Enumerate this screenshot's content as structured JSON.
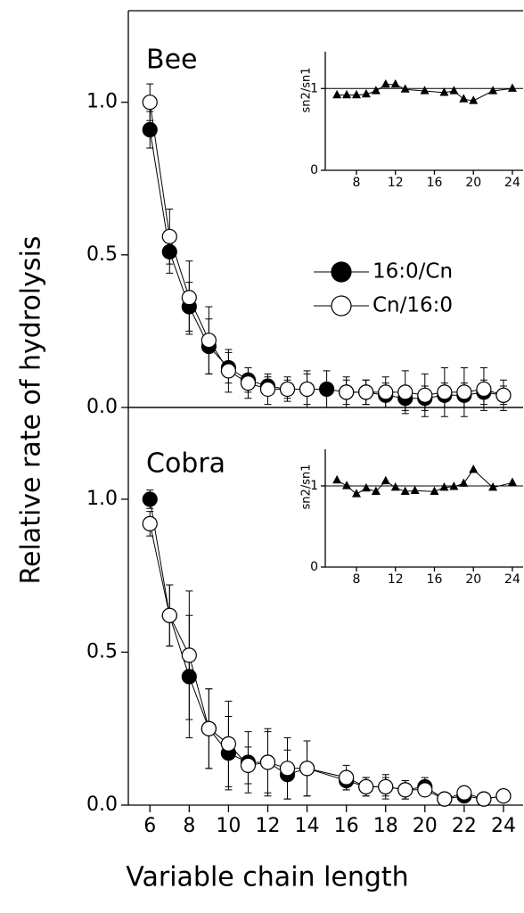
{
  "chart_data": [
    {
      "type": "line",
      "label": "Bee",
      "ylabel": "Relative rate of hydrolysis",
      "xlim": [
        4.9,
        25
      ],
      "ylim": [
        0,
        1.3
      ],
      "yticks": [
        {
          "value": 0,
          "label": "0.0"
        },
        0.5,
        {
          "value": 1,
          "label": "1.0"
        }
      ],
      "legend": "right",
      "x": [
        6,
        7,
        8,
        9,
        10,
        11,
        12,
        13,
        14,
        15,
        16,
        17,
        18,
        19,
        20,
        21,
        22,
        23,
        24
      ],
      "series": [
        {
          "name": "16:0/Cn",
          "color": "#000000",
          "values": [
            0.91,
            0.51,
            0.33,
            0.2,
            0.13,
            0.09,
            0.07,
            0.06,
            0.06,
            0.06,
            0.05,
            0.05,
            0.04,
            0.03,
            0.03,
            0.04,
            0.04,
            0.05,
            0.04
          ],
          "errors": [
            0.06,
            0.07,
            0.08,
            0.09,
            0.05,
            0.04,
            0.03,
            0.03,
            0.06,
            0.06,
            0.05,
            0.04,
            0.04,
            0.04,
            0.04,
            0.04,
            0.04,
            0.04,
            0.03
          ]
        },
        {
          "name": "Cn/16:0",
          "color": "#ffffff",
          "values": [
            1.0,
            0.56,
            0.36,
            0.22,
            0.12,
            0.08,
            0.06,
            0.06,
            0.06,
            null,
            0.05,
            0.05,
            0.05,
            0.05,
            0.04,
            0.05,
            0.05,
            0.06,
            0.04
          ],
          "errors": [
            0.06,
            0.09,
            0.12,
            0.11,
            0.07,
            0.05,
            0.05,
            0.04,
            0.05,
            null,
            0.04,
            0.04,
            0.05,
            0.07,
            0.07,
            0.08,
            0.08,
            0.07,
            0.05
          ]
        }
      ]
    },
    {
      "type": "line",
      "ylabel": "sn2/sn1",
      "marker": "triangle",
      "xlim": [
        4.8,
        25.1
      ],
      "ylim": [
        0,
        1.45
      ],
      "yticks": [
        0,
        1
      ],
      "xticks": [
        8,
        12,
        16,
        20,
        24
      ],
      "hline": 1,
      "x": [
        6,
        7,
        8,
        9,
        10,
        11,
        12,
        13,
        15,
        17,
        18,
        19,
        20,
        22,
        24
      ],
      "series": [
        {
          "color": "#000000",
          "values": [
            0.92,
            0.92,
            0.92,
            0.93,
            0.97,
            1.05,
            1.05,
            0.99,
            0.97,
            0.95,
            0.97,
            0.87,
            0.85,
            0.97,
            1.0
          ]
        }
      ]
    },
    {
      "type": "line",
      "label": "Cobra",
      "xlabel": "Variable chain length",
      "xlim": [
        4.9,
        25
      ],
      "ylim": [
        0,
        1.3
      ],
      "yticks": [
        {
          "value": 0,
          "label": "0.0"
        },
        0.5,
        {
          "value": 1,
          "label": "1.0"
        }
      ],
      "xticks": [
        6,
        8,
        10,
        12,
        14,
        16,
        18,
        20,
        22,
        24
      ],
      "x": [
        6,
        7,
        8,
        9,
        10,
        11,
        12,
        13,
        14,
        16,
        17,
        18,
        19,
        20,
        21,
        22,
        23,
        24
      ],
      "series": [
        {
          "color": "#000000",
          "values": [
            1.0,
            0.62,
            0.42,
            0.25,
            0.17,
            0.14,
            0.14,
            0.1,
            0.12,
            0.08,
            0.06,
            0.06,
            0.05,
            0.06,
            0.02,
            0.03,
            0.02,
            0.03
          ],
          "errors": [
            0.03,
            0.1,
            0.2,
            0.13,
            0.12,
            0.1,
            0.11,
            0.08,
            0.09,
            0.03,
            0.03,
            0.03,
            0.03,
            0.03,
            0.02,
            0.02,
            0.02,
            0.02
          ]
        },
        {
          "color": "#ffffff",
          "values": [
            0.92,
            0.62,
            0.49,
            0.25,
            0.2,
            0.13,
            0.14,
            0.12,
            0.12,
            0.09,
            0.06,
            0.06,
            0.05,
            0.05,
            0.02,
            0.04,
            0.02,
            0.03
          ],
          "errors": [
            0.04,
            0.1,
            0.21,
            0.13,
            0.14,
            0.06,
            0.1,
            0.1,
            0.09,
            0.04,
            0.03,
            0.04,
            0.03,
            0.02,
            0.02,
            0.02,
            0.02,
            0.02
          ]
        }
      ]
    },
    {
      "type": "line",
      "ylabel": "sn2/sn1",
      "marker": "triangle",
      "xlim": [
        4.8,
        25.1
      ],
      "ylim": [
        0,
        1.45
      ],
      "yticks": [
        0,
        1
      ],
      "xticks": [
        8,
        12,
        16,
        20,
        24
      ],
      "hline": 1,
      "x": [
        6,
        7,
        8,
        9,
        10,
        11,
        12,
        13,
        14,
        16,
        17,
        18,
        19,
        20,
        22,
        24
      ],
      "series": [
        {
          "color": "#000000",
          "values": [
            1.07,
            1.0,
            0.9,
            0.97,
            0.93,
            1.06,
            0.98,
            0.93,
            0.94,
            0.93,
            0.98,
            0.99,
            1.03,
            1.2,
            0.98,
            1.04
          ]
        }
      ]
    }
  ]
}
